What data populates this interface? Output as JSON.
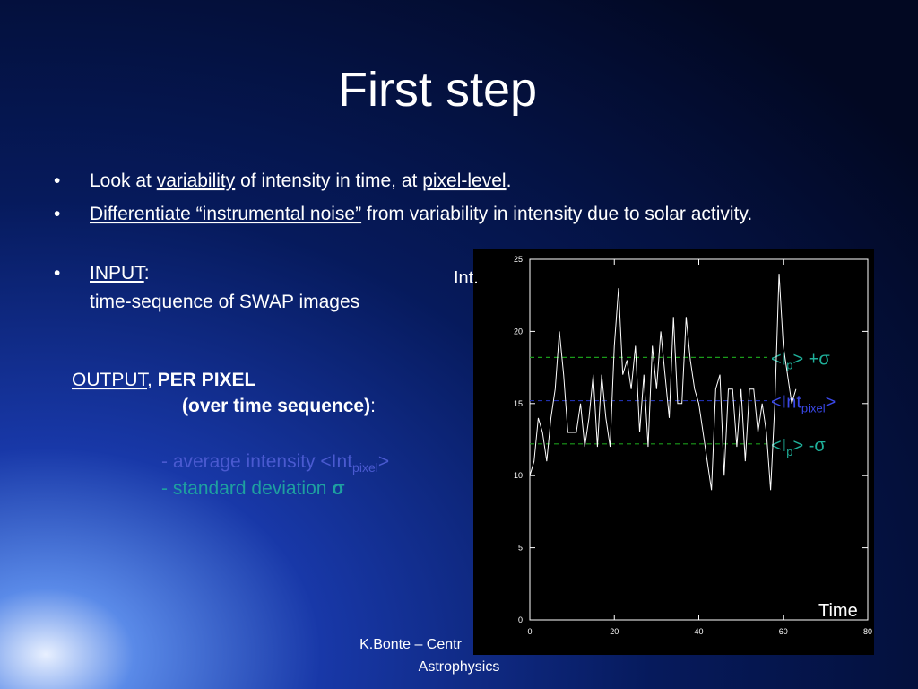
{
  "title": "First step",
  "bullet": "•",
  "bullets": [
    [
      "Look at ",
      "variability",
      " of intensity in time, at ",
      "pixel-level",
      "."
    ],
    [
      "Differentiate “instrumental noise”",
      " from variability in intensity due to solar activity."
    ],
    [
      "INPUT",
      ":",
      "time-sequence of SWAP images"
    ]
  ],
  "output": {
    "heading": [
      "OUTPUT",
      ", ",
      "PER PIXEL",
      "(over time sequence)",
      ":"
    ],
    "items": [
      [
        "- average intensity <Int",
        "pixel",
        ">"
      ],
      [
        "- standard deviation  ",
        "σ"
      ]
    ]
  },
  "footer": [
    "K.Bonte – Centr",
    "Astrophysics"
  ],
  "chart_data": {
    "type": "line",
    "ylabel": "Int.",
    "xlabel": "Time",
    "x": [
      0,
      1,
      2,
      3,
      4,
      5,
      6,
      7,
      8,
      9,
      10,
      11,
      12,
      13,
      14,
      15,
      16,
      17,
      18,
      19,
      20,
      21,
      22,
      23,
      24,
      25,
      26,
      27,
      28,
      29,
      30,
      31,
      32,
      33,
      34,
      35,
      36,
      37,
      38,
      39,
      40,
      41,
      42,
      43,
      44,
      45,
      46,
      47,
      48,
      49,
      50,
      51,
      52,
      53,
      54,
      55,
      56,
      57,
      58,
      59,
      60,
      61,
      62,
      63
    ],
    "series": [
      {
        "color": "#ffffff",
        "values": [
          10,
          11,
          14,
          13,
          11,
          14,
          16,
          20,
          17,
          13,
          13,
          13,
          15,
          12,
          14,
          17,
          12,
          17,
          14,
          12,
          19,
          23,
          17,
          18,
          16,
          19,
          13,
          17,
          12,
          19,
          16,
          20,
          17,
          14,
          21,
          15,
          15,
          21,
          18,
          16,
          15,
          13,
          11,
          9,
          16,
          17,
          10,
          16,
          16,
          12,
          16,
          11,
          16,
          16,
          13,
          15,
          13,
          9,
          15,
          24,
          19,
          17,
          15,
          16
        ]
      }
    ],
    "xlim": [
      0,
      80
    ],
    "ylim": [
      0,
      25
    ],
    "xticks": [
      0,
      20,
      40,
      60,
      80
    ],
    "yticks": [
      0,
      5,
      10,
      15,
      20,
      25
    ],
    "reference_lines": [
      {
        "value": 18.2,
        "color": "#1a9a1a",
        "label": [
          "<I",
          "p",
          "> +σ"
        ],
        "label_color": "#1fb09a"
      },
      {
        "value": 15.2,
        "color": "#2030b0",
        "label": [
          "<Int",
          "pixel",
          ">"
        ],
        "label_color": "#3a48e8"
      },
      {
        "value": 12.2,
        "color": "#1a9a1a",
        "label": [
          "<I",
          "p",
          "> -σ"
        ],
        "label_color": "#1fb09a"
      }
    ]
  }
}
